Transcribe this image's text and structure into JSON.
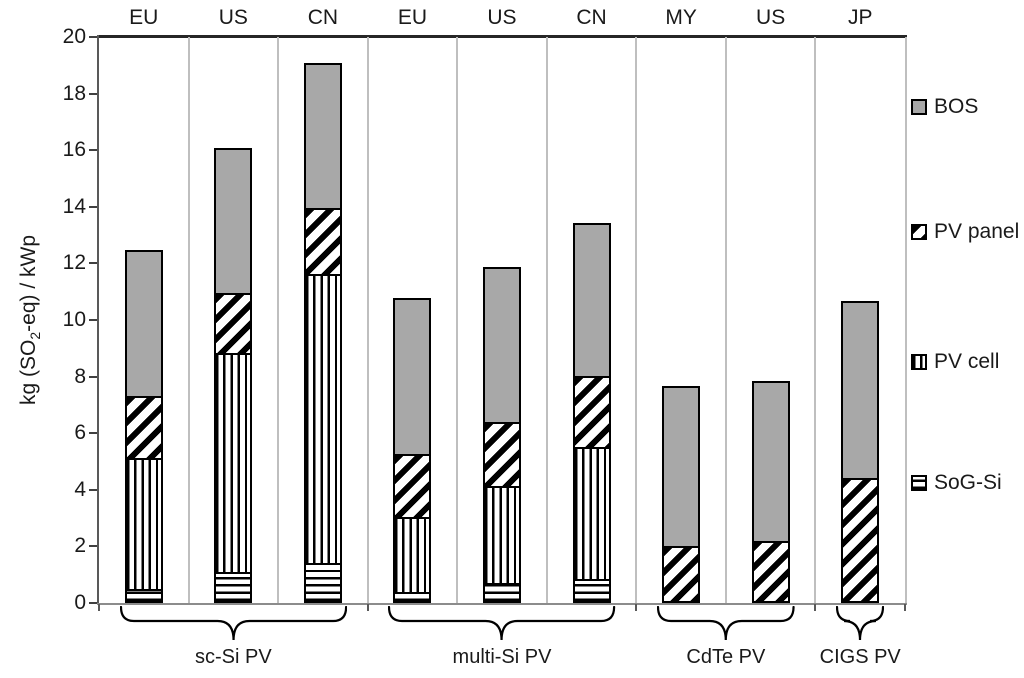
{
  "y_axis": {
    "label_pre": "kg (SO",
    "label_sub": "2",
    "label_post": "-eq) / kWp",
    "ticks": [
      0,
      2,
      4,
      6,
      8,
      10,
      12,
      14,
      16,
      18,
      20
    ]
  },
  "legend": [
    {
      "label": "BOS",
      "pattern": "solid",
      "fill": "#a8a8a8"
    },
    {
      "label": "PV panel",
      "pattern": "diagonal"
    },
    {
      "label": "PV cell",
      "pattern": "vertical"
    },
    {
      "label": "SoG-Si",
      "pattern": "horizontal"
    }
  ],
  "chart_data": {
    "type": "bar",
    "stacked": true,
    "title": "",
    "xlabel": "",
    "ylabel": "kg (SO2-eq) / kWp",
    "ylim": [
      0,
      20
    ],
    "ytick_step": 2,
    "grid": "vertical-column-separators",
    "legend_position": "right",
    "categories": [
      "EU",
      "US",
      "CN",
      "EU",
      "US",
      "CN",
      "MY",
      "US",
      "JP"
    ],
    "groups": [
      {
        "label": "sc-Si PV",
        "start": 0,
        "end": 2
      },
      {
        "label": "multi-Si PV",
        "start": 3,
        "end": 5
      },
      {
        "label": "CdTe PV",
        "start": 6,
        "end": 7
      },
      {
        "label": "CIGS PV",
        "start": 8,
        "end": 8
      }
    ],
    "series": [
      {
        "name": "SoG-Si",
        "pattern": "horizontal",
        "values": [
          0.5,
          1.1,
          1.4,
          0.4,
          0.7,
          0.85,
          0,
          0,
          0
        ]
      },
      {
        "name": "PV cell",
        "pattern": "vertical",
        "values": [
          4.7,
          7.8,
          10.3,
          2.7,
          3.5,
          4.75,
          0,
          0,
          0
        ]
      },
      {
        "name": "PV panel",
        "pattern": "diagonal",
        "values": [
          2.25,
          2.2,
          2.4,
          2.3,
          2.35,
          2.55,
          2.0,
          2.2,
          4.4
        ]
      },
      {
        "name": "BOS",
        "pattern": "solid",
        "values": [
          5.25,
          5.2,
          5.2,
          5.6,
          5.55,
          5.5,
          5.75,
          5.7,
          6.35
        ]
      }
    ],
    "totals": [
      12.7,
      16.3,
      19.3,
      11.0,
      12.1,
      13.65,
      7.75,
      7.9,
      10.75
    ]
  }
}
